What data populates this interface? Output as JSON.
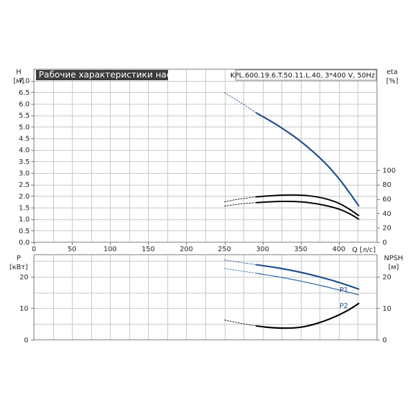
{
  "title": "Рабочие характеристики насоса",
  "model_label": "KPL.600.19.6.T.50.11.L.40, 3*400 V, 50Hz",
  "colors": {
    "blue": "#1f4f8c",
    "blue_light": "#3a6aa6",
    "black": "#000000",
    "grid": "#c8c8c8",
    "title_bg": "#3d3d3d"
  },
  "chart_data": [
    {
      "type": "line",
      "xlabel": "Q [л/с]",
      "ylabel": [
        "H",
        "[м]"
      ],
      "y2label": [
        "eta",
        "[%]"
      ],
      "xlim": [
        0,
        450
      ],
      "x_ticks": [
        0,
        50,
        100,
        150,
        200,
        250,
        300,
        350,
        400
      ],
      "ylim": [
        0,
        7.5
      ],
      "y_ticks": [
        "0.0",
        "0.5",
        "1.0",
        "1.5",
        "2.0",
        "2.5",
        "3.0",
        "3.5",
        "4.0",
        "4.5",
        "5.0",
        "5.5",
        "6.0",
        "6.5",
        "7.0"
      ],
      "y2lim": [
        0,
        240
      ],
      "y2_ticks": [
        "0",
        "20",
        "40",
        "60",
        "80",
        "100"
      ],
      "grid": true,
      "series": [
        {
          "key": "H",
          "axis": "y",
          "color": "blue",
          "style": "dashed",
          "width": 0.9,
          "x": [
            250,
            270,
            292
          ],
          "y": [
            6.48,
            6.08,
            5.6
          ]
        },
        {
          "key": "H",
          "axis": "y",
          "color": "blue",
          "style": "solid",
          "width": 2.2,
          "x": [
            292,
            320,
            350,
            380,
            400,
            415,
            426
          ],
          "y": [
            5.6,
            5.06,
            4.37,
            3.5,
            2.76,
            2.1,
            1.58
          ]
        },
        {
          "key": "eta1",
          "axis": "y2",
          "color": "black",
          "style": "dashed",
          "width": 0.9,
          "x": [
            250,
            270,
            292
          ],
          "y": [
            56,
            60,
            63
          ]
        },
        {
          "key": "eta1",
          "axis": "y2",
          "color": "black",
          "style": "solid",
          "width": 2.0,
          "x": [
            292,
            320,
            340,
            360,
            380,
            400,
            415,
            426
          ],
          "y": [
            63,
            65,
            65.5,
            64.5,
            61,
            54,
            45,
            37
          ]
        },
        {
          "key": "eta2",
          "axis": "y2",
          "color": "black",
          "style": "dashed",
          "width": 0.9,
          "x": [
            250,
            270,
            292
          ],
          "y": [
            50,
            53,
            55
          ]
        },
        {
          "key": "eta2",
          "axis": "y2",
          "color": "black",
          "style": "solid",
          "width": 2.0,
          "x": [
            292,
            320,
            340,
            360,
            380,
            400,
            415,
            426
          ],
          "y": [
            55,
            56.5,
            56.5,
            55,
            51.5,
            46,
            39,
            32
          ]
        }
      ]
    },
    {
      "type": "line",
      "ylabel": [
        "P",
        "[кВт]"
      ],
      "y2label": [
        "NPSH",
        "[м]"
      ],
      "xlim": [
        0,
        450
      ],
      "ylim": [
        0,
        27
      ],
      "y_ticks": [
        "0",
        "10",
        "20"
      ],
      "y2_ticks": [
        "0",
        "10",
        "20"
      ],
      "grid": true,
      "series": [
        {
          "key": "P1",
          "name": "P1",
          "color": "blue",
          "style": "dashed",
          "width": 0.9,
          "x": [
            250,
            270,
            292
          ],
          "y": [
            25.3,
            24.6,
            23.8
          ]
        },
        {
          "key": "P1",
          "name": "P1",
          "color": "blue",
          "style": "solid",
          "width": 2.2,
          "x": [
            292,
            320,
            350,
            380,
            400,
            426
          ],
          "y": [
            23.8,
            22.8,
            21.4,
            19.6,
            18.2,
            16.1
          ]
        },
        {
          "key": "P2",
          "name": "P2",
          "color": "blue_light",
          "style": "dashed",
          "width": 0.9,
          "x": [
            250,
            270,
            292
          ],
          "y": [
            22.6,
            21.9,
            21.1
          ]
        },
        {
          "key": "P2",
          "name": "P2",
          "color": "blue_light",
          "style": "solid",
          "width": 1.3,
          "x": [
            292,
            320,
            350,
            380,
            400,
            426
          ],
          "y": [
            21.1,
            20.0,
            18.6,
            17.0,
            15.8,
            14.3
          ]
        },
        {
          "key": "NPSH",
          "color": "black",
          "style": "dashed",
          "width": 0.9,
          "x": [
            250,
            270,
            292
          ],
          "y": [
            6.3,
            5.3,
            4.4
          ]
        },
        {
          "key": "NPSH",
          "color": "black",
          "style": "solid",
          "width": 2.2,
          "x": [
            292,
            310,
            330,
            350,
            370,
            390,
            410,
            426
          ],
          "y": [
            4.4,
            3.9,
            3.7,
            4.0,
            5.1,
            6.8,
            9.1,
            11.5
          ]
        }
      ]
    }
  ]
}
